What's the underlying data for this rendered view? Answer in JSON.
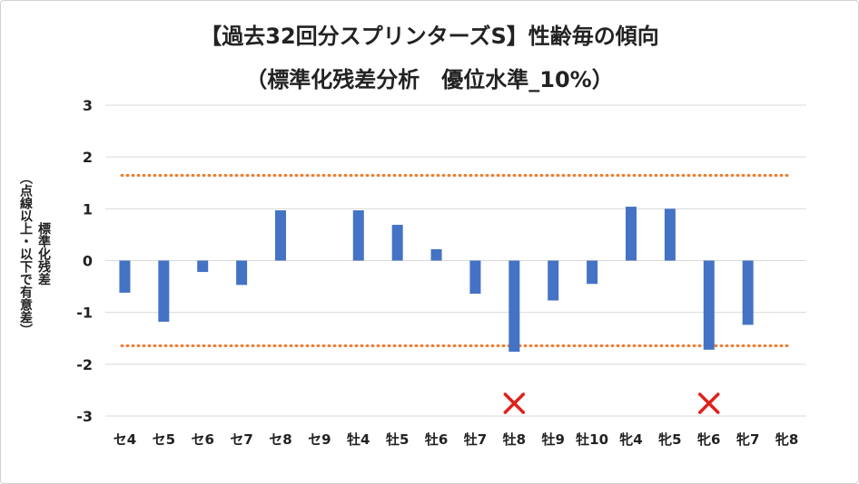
{
  "chart_data": {
    "type": "bar",
    "title": "【過去32回分スプリンターズS】性齢毎の傾向",
    "subtitle": "（標準化残差分析　優位水準_10%）",
    "ylabel_line1": "標準化残差",
    "ylabel_line2": "（点線以上・以下で有意差）",
    "xlabel": "",
    "categories": [
      "セ4",
      "セ5",
      "セ6",
      "セ7",
      "セ8",
      "セ9",
      "牡4",
      "牡5",
      "牡6",
      "牡7",
      "牡8",
      "牡9",
      "牡10",
      "牝4",
      "牝5",
      "牝6",
      "牝7",
      "牝8"
    ],
    "values": [
      -0.62,
      -1.18,
      -0.22,
      -0.47,
      0.97,
      0,
      0.97,
      0.69,
      0.22,
      -0.64,
      -1.76,
      -0.77,
      -0.45,
      1.04,
      1.0,
      -1.72,
      -1.24,
      0
    ],
    "ylim": [
      -3,
      3
    ],
    "yticks": [
      "3",
      "2",
      "1",
      "0",
      "-1",
      "-2",
      "-3"
    ],
    "threshold_upper": 1.645,
    "threshold_lower": -1.645,
    "marked_categories": [
      "牡8",
      "牝6"
    ],
    "grid": true,
    "legend": "none",
    "colors": {
      "bar": "#4472C4",
      "threshold": "#ED7D31",
      "marker": "#E0201B",
      "grid": "#d9d9d9"
    }
  }
}
